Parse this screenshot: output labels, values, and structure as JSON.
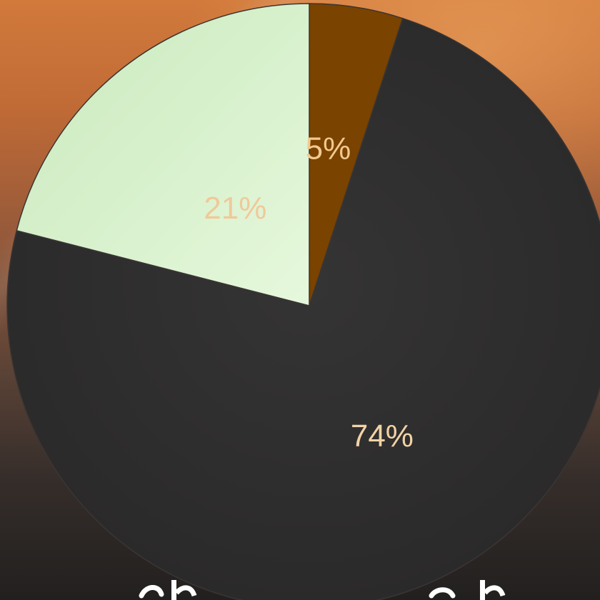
{
  "chart_data": {
    "type": "pie",
    "slices": [
      {
        "label": "5%",
        "value": 5,
        "color": "#7a4300",
        "label_color": "#f2c98f"
      },
      {
        "label": "74%",
        "value": 74,
        "color": "#302f30",
        "label_color": "#f2d3a6"
      },
      {
        "label": "21%",
        "value": 21,
        "color": "#d9f2cd",
        "label_color": "#f0c99a"
      }
    ],
    "start_angle_deg": 0,
    "direction": "clockwise",
    "legend": "none"
  },
  "colors": {
    "background_top": "#d27a3c",
    "background_bottom": "#22201f",
    "pie_edge": "#3b3533"
  }
}
